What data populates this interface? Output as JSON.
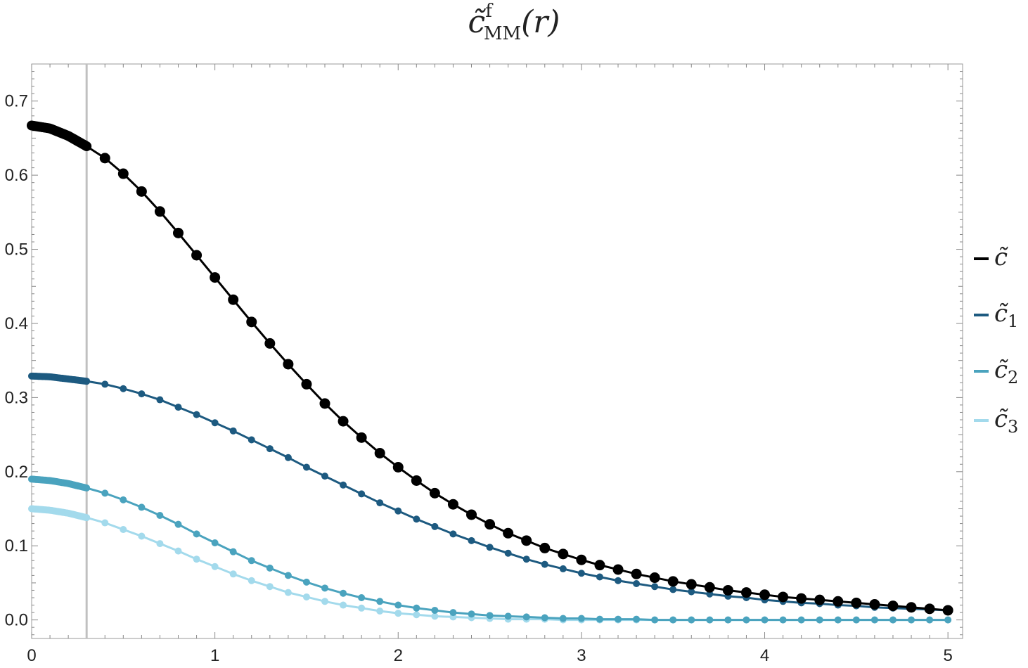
{
  "title": {
    "base": "c̃",
    "superscript": "f",
    "subscript": "MM",
    "argument": "(r)"
  },
  "chart_data": {
    "type": "line",
    "title": "c̃fMM(r)",
    "xlabel": "",
    "ylabel": "",
    "xlim": [
      0,
      5.08
    ],
    "ylim": [
      -0.025,
      0.75
    ],
    "x_ticks": [
      "0",
      "1",
      "2",
      "3",
      "4",
      "5"
    ],
    "y_ticks": [
      "0.0",
      "0.1",
      "0.2",
      "0.3",
      "0.4",
      "0.5",
      "0.6",
      "0.7"
    ],
    "x_tick_values": [
      0,
      1,
      2,
      3,
      4,
      5
    ],
    "y_tick_values": [
      0.0,
      0.1,
      0.2,
      0.3,
      0.4,
      0.5,
      0.6,
      0.7
    ],
    "reference_line_x": 0.3,
    "grid": false,
    "legend_position": "right",
    "x": [
      0,
      0.1,
      0.2,
      0.3,
      0.4,
      0.5,
      0.6,
      0.7,
      0.8,
      0.9,
      1.0,
      1.1,
      1.2,
      1.3,
      1.4,
      1.5,
      1.6,
      1.7,
      1.8,
      1.9,
      2.0,
      2.1,
      2.2,
      2.3,
      2.4,
      2.5,
      2.6,
      2.7,
      2.8,
      2.9,
      3.0,
      3.1,
      3.2,
      3.3,
      3.4,
      3.5,
      3.6,
      3.7,
      3.8,
      3.9,
      4.0,
      4.1,
      4.2,
      4.3,
      4.4,
      4.5,
      4.6,
      4.7,
      4.8,
      4.9,
      5.0
    ],
    "series": [
      {
        "name": "c̃",
        "color": "#000000",
        "values": [
          0.667,
          0.663,
          0.653,
          0.639,
          0.623,
          0.602,
          0.578,
          0.551,
          0.522,
          0.492,
          0.462,
          0.432,
          0.402,
          0.373,
          0.345,
          0.318,
          0.292,
          0.268,
          0.246,
          0.225,
          0.206,
          0.188,
          0.171,
          0.156,
          0.142,
          0.129,
          0.117,
          0.107,
          0.097,
          0.089,
          0.081,
          0.074,
          0.068,
          0.062,
          0.057,
          0.052,
          0.048,
          0.044,
          0.04,
          0.037,
          0.034,
          0.031,
          0.029,
          0.027,
          0.025,
          0.023,
          0.021,
          0.019,
          0.017,
          0.015,
          0.013
        ]
      },
      {
        "name": "c̃1",
        "color": "#1d5a80",
        "values": [
          0.329,
          0.328,
          0.325,
          0.322,
          0.318,
          0.312,
          0.305,
          0.297,
          0.287,
          0.277,
          0.266,
          0.255,
          0.243,
          0.231,
          0.219,
          0.206,
          0.194,
          0.182,
          0.17,
          0.158,
          0.147,
          0.136,
          0.126,
          0.116,
          0.107,
          0.098,
          0.09,
          0.082,
          0.075,
          0.069,
          0.063,
          0.058,
          0.053,
          0.049,
          0.045,
          0.041,
          0.038,
          0.035,
          0.032,
          0.03,
          0.027,
          0.025,
          0.023,
          0.022,
          0.02,
          0.019,
          0.017,
          0.016,
          0.015,
          0.014,
          0.013
        ]
      },
      {
        "name": "c̃2",
        "color": "#4aa3be",
        "values": [
          0.19,
          0.188,
          0.184,
          0.178,
          0.171,
          0.162,
          0.152,
          0.141,
          0.129,
          0.116,
          0.104,
          0.092,
          0.08,
          0.07,
          0.06,
          0.051,
          0.043,
          0.036,
          0.03,
          0.025,
          0.02,
          0.016,
          0.013,
          0.01,
          0.008,
          0.006,
          0.005,
          0.004,
          0.003,
          0.002,
          0.002,
          0.001,
          0.001,
          0.001,
          0.0,
          0.0,
          0.0,
          0.0,
          0.0,
          0.0,
          0.0,
          0.0,
          0.0,
          0.0,
          0.0,
          0.0,
          0.0,
          0.0,
          0.0,
          0.0,
          0.0
        ]
      },
      {
        "name": "c̃3",
        "color": "#a3daec",
        "values": [
          0.15,
          0.148,
          0.144,
          0.138,
          0.131,
          0.122,
          0.113,
          0.103,
          0.093,
          0.082,
          0.072,
          0.062,
          0.053,
          0.045,
          0.037,
          0.031,
          0.025,
          0.02,
          0.016,
          0.012,
          0.009,
          0.007,
          0.005,
          0.004,
          0.003,
          0.002,
          0.001,
          0.001,
          0.001,
          0.0,
          0.0,
          0.0,
          0.0,
          0.0,
          0.0,
          0.0,
          0.0,
          0.0,
          0.0,
          0.0,
          0.0,
          0.0,
          0.0,
          0.0,
          0.0,
          0.0,
          0.0,
          0.0,
          0.0,
          0.0,
          0.0
        ]
      }
    ],
    "legend": [
      {
        "base": "c̃",
        "sub": ""
      },
      {
        "base": "c̃",
        "sub": "1"
      },
      {
        "base": "c̃",
        "sub": "2"
      },
      {
        "base": "c̃",
        "sub": "3"
      }
    ]
  }
}
